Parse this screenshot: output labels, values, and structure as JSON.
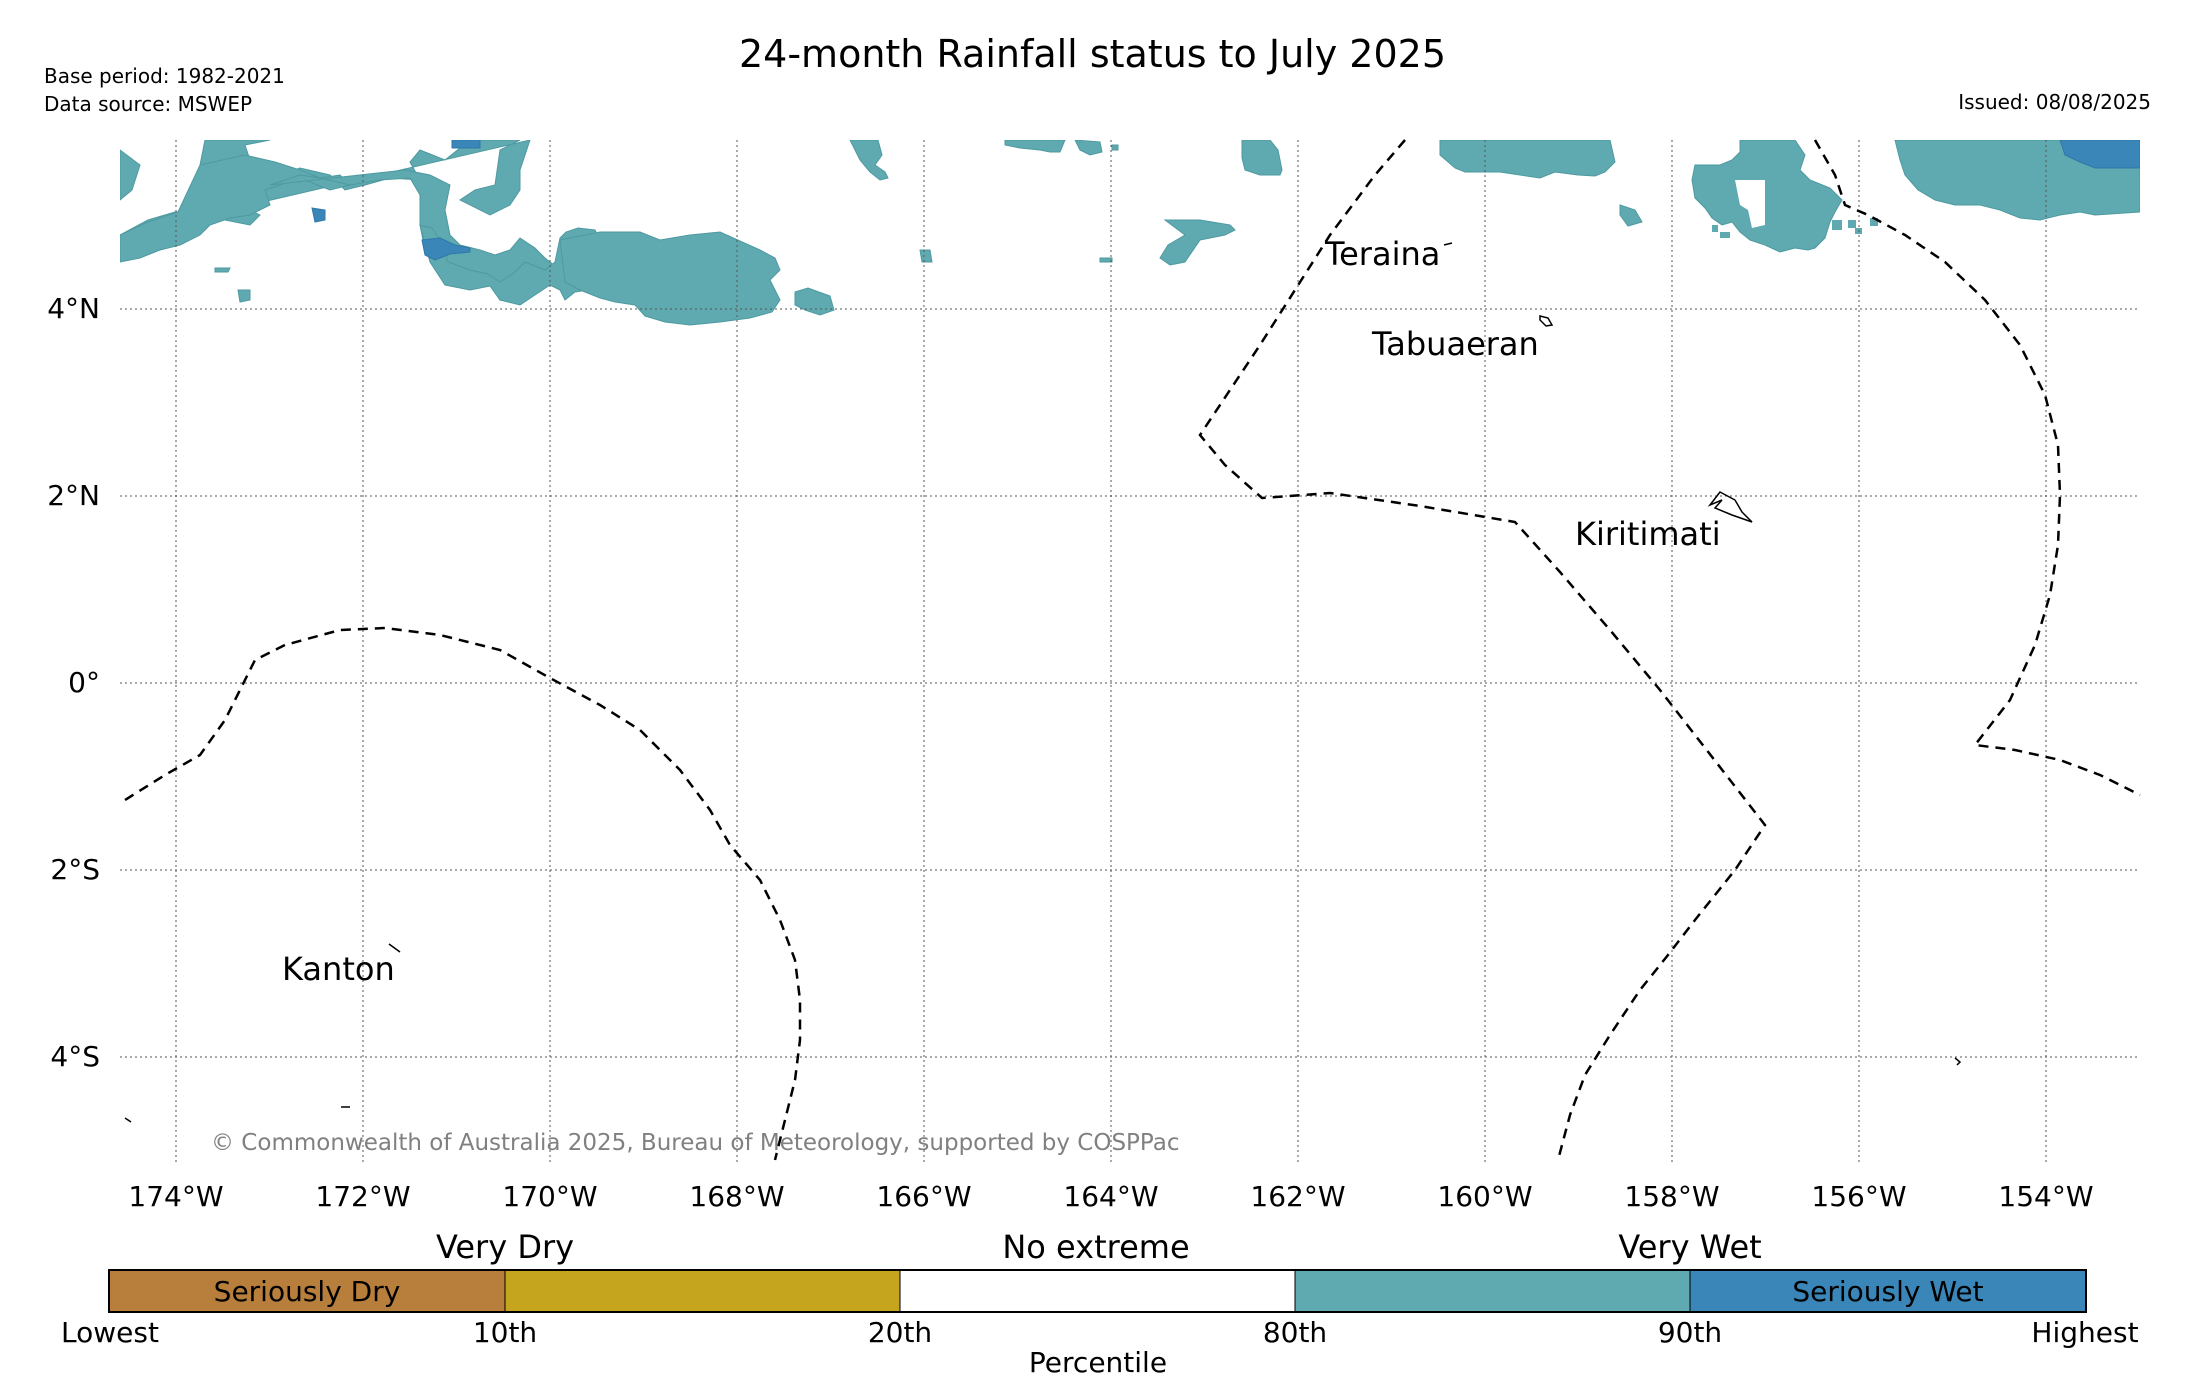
{
  "header": {
    "title": "24-month Rainfall status to July 2025",
    "base_period": "Base period: 1982-2021",
    "data_source": "Data source: MSWEP",
    "issued": "Issued: 08/08/2025"
  },
  "map": {
    "lat_labels": [
      "4°N",
      "2°N",
      "0°",
      "2°S",
      "4°S"
    ],
    "lon_labels": [
      "174°W",
      "172°W",
      "170°W",
      "168°W",
      "166°W",
      "164°W",
      "162°W",
      "160°W",
      "158°W",
      "156°W",
      "154°W"
    ],
    "places": {
      "teraina": "Teraina",
      "tabuaeran": "Tabuaeran",
      "kiritimati": "Kiritimati",
      "kanton": "Kanton"
    },
    "copyright": "© Commonwealth of Australia 2025, Bureau of Meteorology, supported by COSPPac"
  },
  "legend": {
    "categories": {
      "dry": "Very Dry",
      "none": "No extreme",
      "wet": "Very Wet"
    },
    "segments": [
      {
        "label": "Seriously Dry",
        "color": "#b87e3c"
      },
      {
        "label": "",
        "color": "#c6a51e"
      },
      {
        "label": "",
        "color": "#ffffff"
      },
      {
        "label": "",
        "color": "#5faab0"
      },
      {
        "label": "Seriously Wet",
        "color": "#3a86b8"
      }
    ],
    "ticks": [
      "Lowest",
      "10th",
      "20th",
      "80th",
      "90th",
      "Highest"
    ],
    "axis_label": "Percentile"
  },
  "colors": {
    "very_wet": "#5faab0",
    "seriously_wet": "#3a86b8",
    "boundary": "#000000"
  }
}
